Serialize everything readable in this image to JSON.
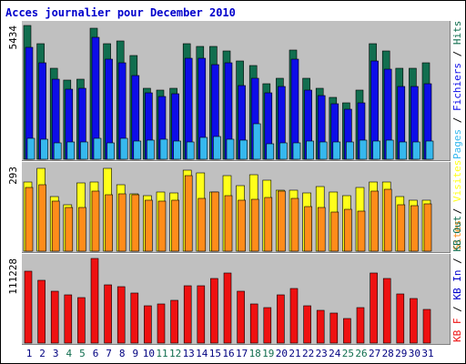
{
  "title": "Acces journalier pour December 2010",
  "colors": {
    "title": "#0000cc",
    "frame": "#000000",
    "panel": "#c0c0c0",
    "hits": "#116e4f",
    "files": "#0d0de8",
    "pages": "#36b8ee",
    "visits": "#ffff1a",
    "sites": "#ff8c1a",
    "kbin": "#0000cc",
    "kbout": "#116e4f",
    "kbf": "#ee1111",
    "weekend": "#116e4f",
    "weekday": "#000080"
  },
  "chart_data": [
    {
      "type": "bar",
      "ylabel": "5434",
      "ylim": [
        0,
        5434
      ],
      "categories": [
        "1",
        "2",
        "3",
        "4",
        "5",
        "6",
        "7",
        "8",
        "9",
        "10",
        "11",
        "12",
        "13",
        "14",
        "15",
        "16",
        "17",
        "18",
        "19",
        "20",
        "21",
        "22",
        "23",
        "24",
        "25",
        "26",
        "27",
        "28",
        "29",
        "30",
        "31"
      ],
      "weekend_days": [
        4,
        5,
        11,
        12,
        18,
        19,
        25,
        26
      ],
      "legend": [
        {
          "label": "Hits",
          "color_key": "hits"
        },
        {
          "label": "Fichiers",
          "color_key": "files"
        },
        {
          "label": "Pages",
          "color_key": "pages"
        }
      ],
      "series": [
        {
          "name": "Hits",
          "values": [
            5434,
            4700,
            3700,
            3200,
            3250,
            5340,
            4700,
            4800,
            4200,
            2900,
            2800,
            2900,
            4700,
            4600,
            4600,
            4400,
            4000,
            3800,
            3050,
            3300,
            4450,
            3300,
            2900,
            2500,
            2300,
            2800,
            4700,
            4400,
            3700,
            3700,
            3900
          ]
        },
        {
          "name": "Fichiers",
          "values": [
            4550,
            3900,
            3250,
            2850,
            2900,
            4950,
            4050,
            3900,
            3400,
            2700,
            2550,
            2650,
            4100,
            4100,
            3850,
            3900,
            3000,
            3300,
            2700,
            2950,
            4050,
            2800,
            2600,
            2250,
            2050,
            2300,
            4000,
            3650,
            2950,
            2950,
            3050
          ]
        },
        {
          "name": "Pages",
          "values": [
            860,
            810,
            680,
            700,
            710,
            860,
            660,
            840,
            730,
            780,
            830,
            750,
            690,
            880,
            910,
            820,
            780,
            1450,
            640,
            670,
            660,
            730,
            720,
            700,
            700,
            760,
            740,
            770,
            720,
            690,
            730
          ]
        }
      ]
    },
    {
      "type": "bar",
      "ylabel": "293",
      "ylim": [
        0,
        293
      ],
      "categories": [
        "1",
        "2",
        "3",
        "4",
        "5",
        "6",
        "7",
        "8",
        "9",
        "10",
        "11",
        "12",
        "13",
        "14",
        "15",
        "16",
        "17",
        "18",
        "19",
        "20",
        "21",
        "22",
        "23",
        "24",
        "25",
        "26",
        "27",
        "28",
        "29",
        "30",
        "31"
      ],
      "legend": [
        {
          "label": "Visites",
          "color_key": "visits"
        },
        {
          "label": "Sites",
          "color_key": "sites"
        }
      ],
      "series": [
        {
          "name": "Visites",
          "values": [
            241,
            287,
            190,
            162,
            236,
            240,
            286,
            230,
            200,
            193,
            204,
            202,
            279,
            270,
            206,
            260,
            227,
            265,
            247,
            212,
            212,
            202,
            223,
            206,
            192,
            220,
            238,
            241,
            190,
            175,
            175
          ]
        },
        {
          "name": "Sites",
          "values": [
            220,
            231,
            172,
            150,
            152,
            207,
            194,
            200,
            194,
            178,
            172,
            175,
            260,
            183,
            206,
            191,
            178,
            180,
            186,
            209,
            184,
            153,
            150,
            137,
            145,
            139,
            209,
            214,
            160,
            159,
            165
          ]
        }
      ]
    },
    {
      "type": "bar",
      "ylabel": "111228",
      "ylim": [
        0,
        111228
      ],
      "categories": [
        "1",
        "2",
        "3",
        "4",
        "5",
        "6",
        "7",
        "8",
        "9",
        "10",
        "11",
        "12",
        "13",
        "14",
        "15",
        "16",
        "17",
        "18",
        "19",
        "20",
        "21",
        "22",
        "23",
        "24",
        "25",
        "26",
        "27",
        "28",
        "29",
        "30",
        "31"
      ],
      "legend": [
        {
          "label": "KB F",
          "color_key": "kbf"
        },
        {
          "label": "KB In",
          "color_key": "kbin"
        },
        {
          "label": "KB Out",
          "color_key": "kbout"
        }
      ],
      "series": [
        {
          "name": "KB F",
          "values": [
            95000,
            83000,
            68000,
            63000,
            60000,
            111228,
            76000,
            74000,
            66000,
            49000,
            51000,
            56000,
            75000,
            75000,
            85000,
            92000,
            68000,
            51000,
            47000,
            63000,
            72000,
            49000,
            43000,
            39000,
            32000,
            47000,
            92000,
            85000,
            65000,
            59000,
            44000
          ]
        }
      ]
    }
  ],
  "legends": {
    "top": [
      "Pages",
      "Fichiers",
      "Hits"
    ],
    "mid": [
      "Sites",
      "Visites"
    ],
    "bot": [
      "KB F",
      "KB In",
      "KB Out"
    ]
  }
}
